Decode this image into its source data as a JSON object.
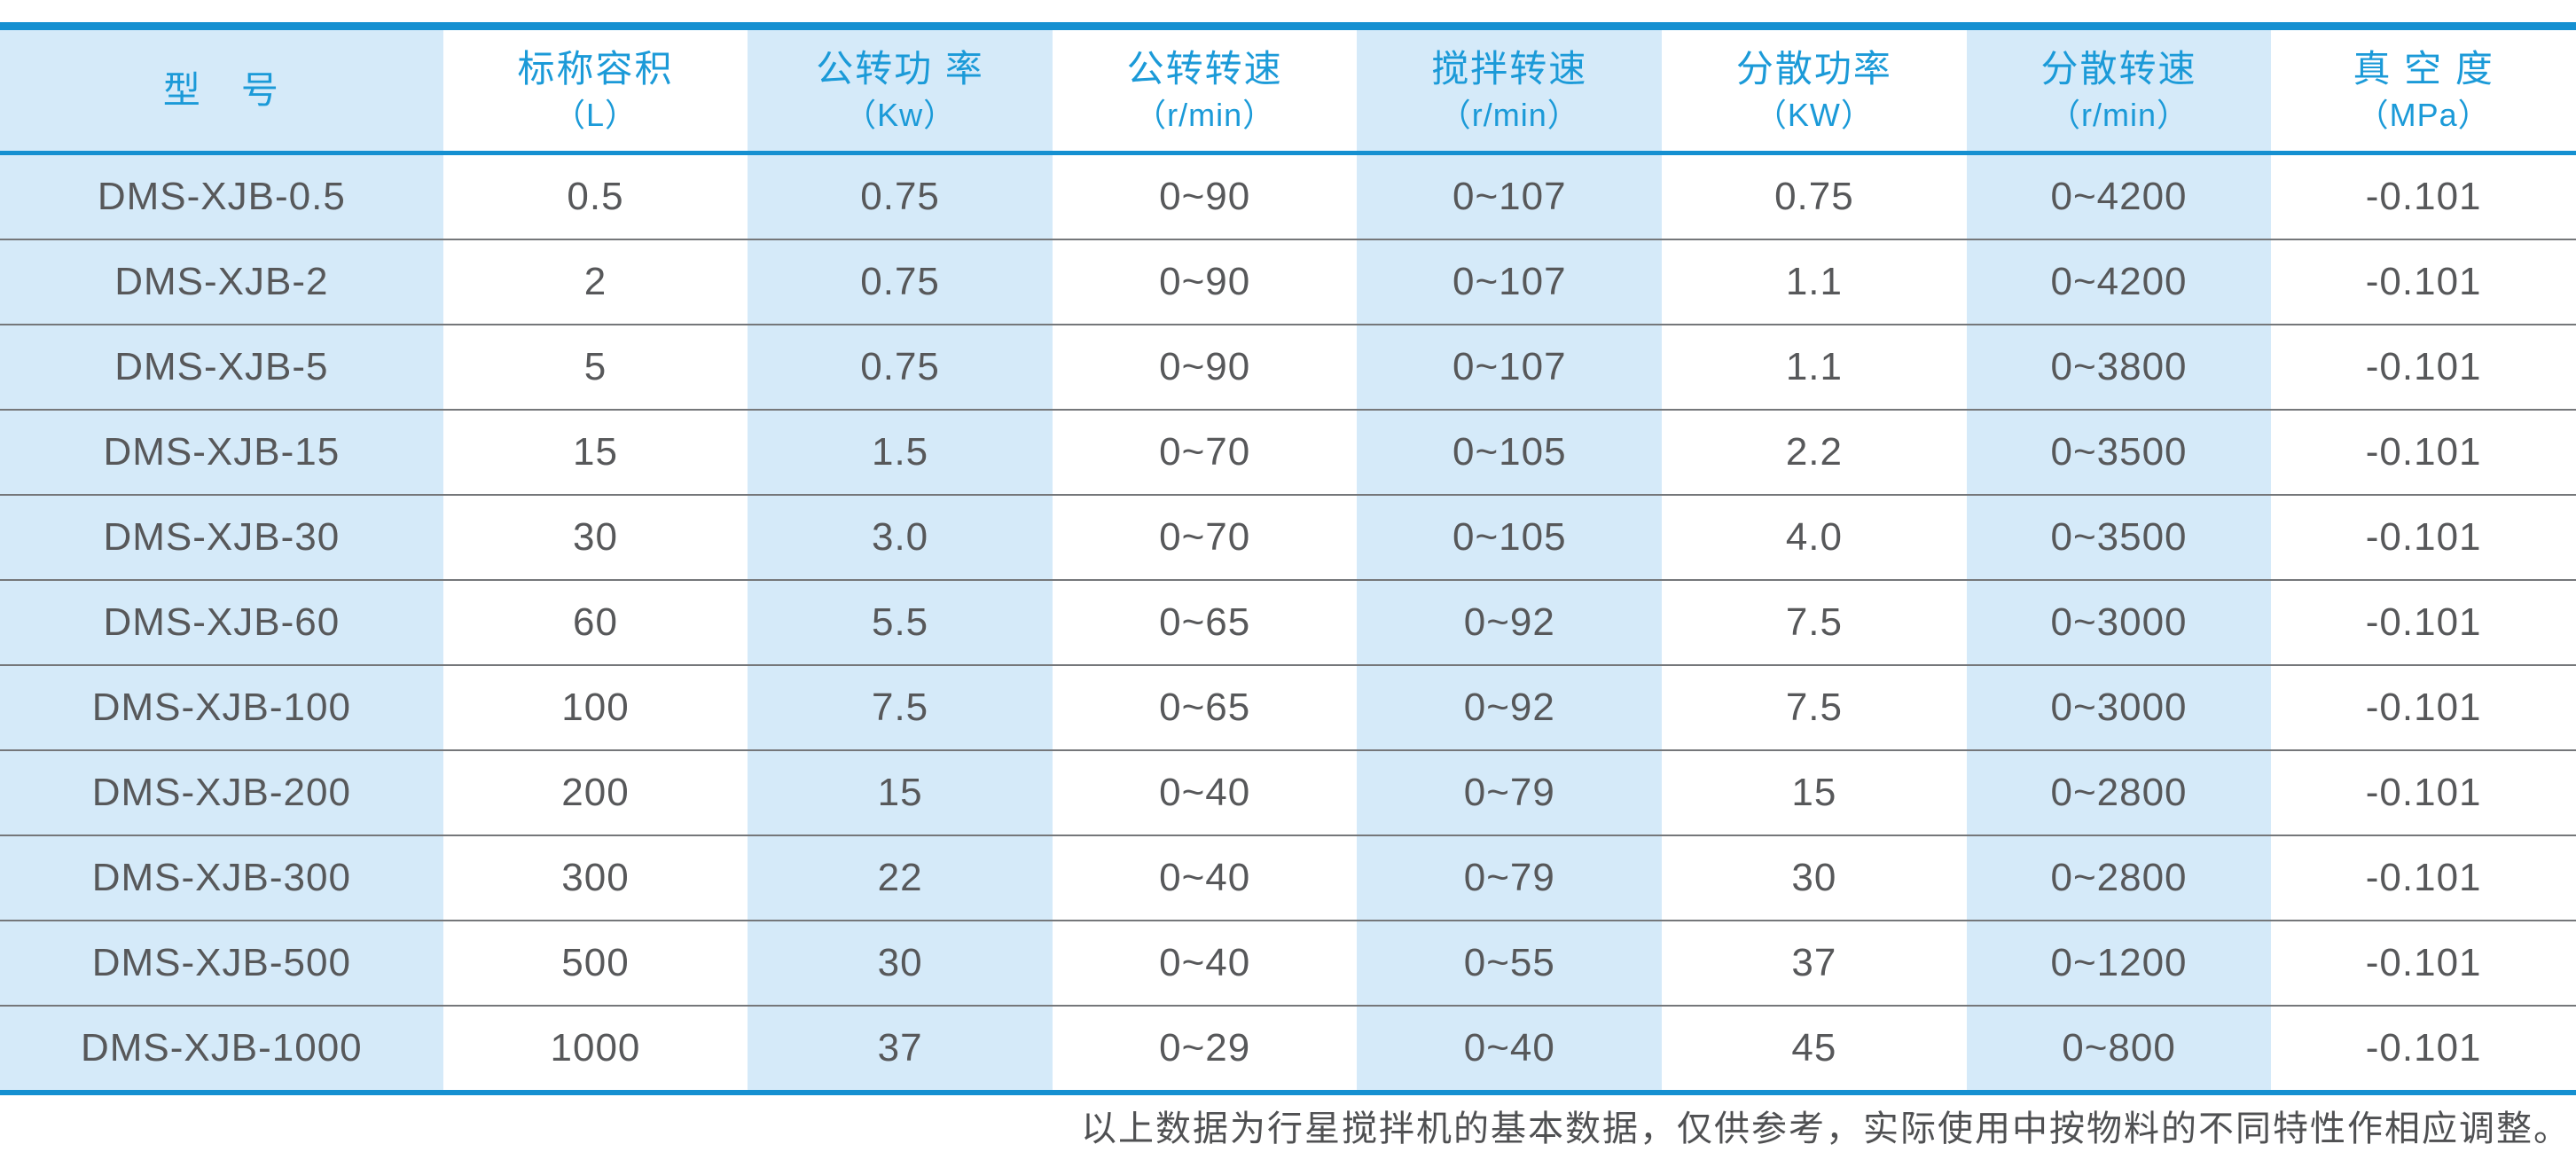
{
  "table": {
    "columns": [
      {
        "label": "型　号",
        "unit": ""
      },
      {
        "label": "标称容积",
        "unit": "（L）"
      },
      {
        "label": "公转功 率",
        "unit": "（Kw）"
      },
      {
        "label": "公转转速",
        "unit": "（r/min）"
      },
      {
        "label": "搅拌转速",
        "unit": "（r/min）"
      },
      {
        "label": "分散功率",
        "unit": "（KW）"
      },
      {
        "label": "分散转速",
        "unit": "（r/min）"
      },
      {
        "label": "真 空 度",
        "unit": "（MPa）"
      }
    ],
    "rows": [
      [
        "DMS-XJB-0.5",
        "0.5",
        "0.75",
        "0~90",
        "0~107",
        "0.75",
        "0~4200",
        "-0.101"
      ],
      [
        "DMS-XJB-2",
        "2",
        "0.75",
        "0~90",
        "0~107",
        "1.1",
        "0~4200",
        "-0.101"
      ],
      [
        "DMS-XJB-5",
        "5",
        "0.75",
        "0~90",
        "0~107",
        "1.1",
        "0~3800",
        "-0.101"
      ],
      [
        "DMS-XJB-15",
        "15",
        "1.5",
        "0~70",
        "0~105",
        "2.2",
        "0~3500",
        "-0.101"
      ],
      [
        "DMS-XJB-30",
        "30",
        "3.0",
        "0~70",
        "0~105",
        "4.0",
        "0~3500",
        "-0.101"
      ],
      [
        "DMS-XJB-60",
        "60",
        "5.5",
        "0~65",
        "0~92",
        "7.5",
        "0~3000",
        "-0.101"
      ],
      [
        "DMS-XJB-100",
        "100",
        "7.5",
        "0~65",
        "0~92",
        "7.5",
        "0~3000",
        "-0.101"
      ],
      [
        "DMS-XJB-200",
        "200",
        "15",
        "0~40",
        "0~79",
        "15",
        "0~2800",
        "-0.101"
      ],
      [
        "DMS-XJB-300",
        "300",
        "22",
        "0~40",
        "0~79",
        "30",
        "0~2800",
        "-0.101"
      ],
      [
        "DMS-XJB-500",
        "500",
        "30",
        "0~40",
        "0~55",
        "37",
        "0~1200",
        "-0.101"
      ],
      [
        "DMS-XJB-1000",
        "1000",
        "37",
        "0~29",
        "0~40",
        "45",
        "0~800",
        "-0.101"
      ]
    ]
  },
  "footer": {
    "note": "以上数据为行星搅拌机的基本数据，仅供参考，实际使用中按物料的不同特性作相应调整。"
  },
  "colors": {
    "accent_blue": "#1590d1",
    "header_text_blue": "#1b9ad8",
    "column_stripe_blue": "#d5eaf9",
    "data_text_gray": "#57585a",
    "row_separator_gray": "#75777a",
    "note_text_gray": "#4f5052"
  }
}
